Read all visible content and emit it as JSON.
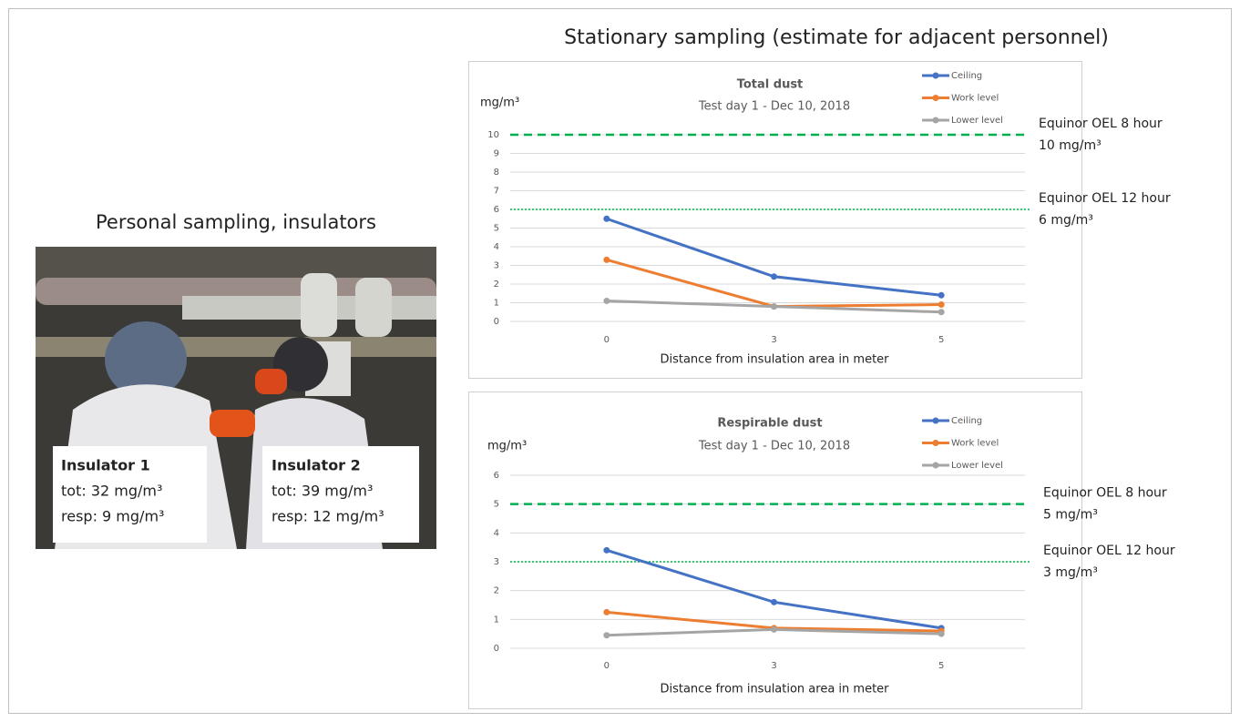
{
  "header": {
    "title": "Stationary sampling (estimate for adjacent personnel)"
  },
  "personal": {
    "title": "Personal sampling, insulators",
    "insulators": [
      {
        "name": "Insulator 1",
        "tot": "tot: 32 mg/m³",
        "resp": "resp: 9 mg/m³"
      },
      {
        "name": "Insulator 2",
        "tot": "tot: 39 mg/m³",
        "resp": "resp: 12 mg/m³"
      }
    ]
  },
  "chart_data": [
    {
      "type": "line",
      "title": "Total dust",
      "subtitle": "Test day 1 - Dec 10, 2018",
      "y_label": "mg/m³",
      "x_label": "Distance from insulation area in meter",
      "categories": [
        "0",
        "3",
        "5"
      ],
      "series": [
        {
          "name": "Ceiling",
          "color": "#4472c4",
          "values": [
            5.5,
            2.4,
            1.4
          ]
        },
        {
          "name": "Work level",
          "color": "#ed7d31",
          "values": [
            3.3,
            0.8,
            0.9
          ]
        },
        {
          "name": "Lower level",
          "color": "#a5a5a5",
          "values": [
            1.1,
            0.8,
            0.5
          ]
        }
      ],
      "ylim": [
        0,
        10
      ],
      "yticks": [
        0,
        1,
        2,
        3,
        4,
        5,
        6,
        7,
        8,
        9,
        10
      ],
      "grid": true,
      "legend": "top-right",
      "reference_lines": [
        {
          "value": 10,
          "label": "Equinor OEL 8 hour",
          "sublabel": "10 mg/m³",
          "color": "#00b050",
          "style": "dashed"
        },
        {
          "value": 6,
          "label": "Equinor OEL 12 hour",
          "sublabel": "6 mg/m³",
          "color": "#00b050",
          "style": "dotted"
        }
      ]
    },
    {
      "type": "line",
      "title": "Respirable dust",
      "subtitle": "Test day 1 - Dec 10, 2018",
      "y_label": "mg/m³",
      "x_label": "Distance from insulation area in meter",
      "categories": [
        "0",
        "3",
        "5"
      ],
      "series": [
        {
          "name": "Ceiling",
          "color": "#4472c4",
          "values": [
            3.4,
            1.6,
            0.7
          ]
        },
        {
          "name": "Work level",
          "color": "#ed7d31",
          "values": [
            1.25,
            0.7,
            0.6
          ]
        },
        {
          "name": "Lower level",
          "color": "#a5a5a5",
          "values": [
            0.45,
            0.65,
            0.5
          ]
        }
      ],
      "ylim": [
        0,
        6
      ],
      "yticks": [
        0,
        1,
        2,
        3,
        4,
        5,
        6
      ],
      "grid": true,
      "legend": "top-right",
      "reference_lines": [
        {
          "value": 5,
          "label": "Equinor OEL 8 hour",
          "sublabel": "5 mg/m³",
          "color": "#00b050",
          "style": "dashed"
        },
        {
          "value": 3,
          "label": "Equinor OEL 12 hour",
          "sublabel": "3 mg/m³",
          "color": "#00b050",
          "style": "dotted"
        }
      ]
    }
  ]
}
